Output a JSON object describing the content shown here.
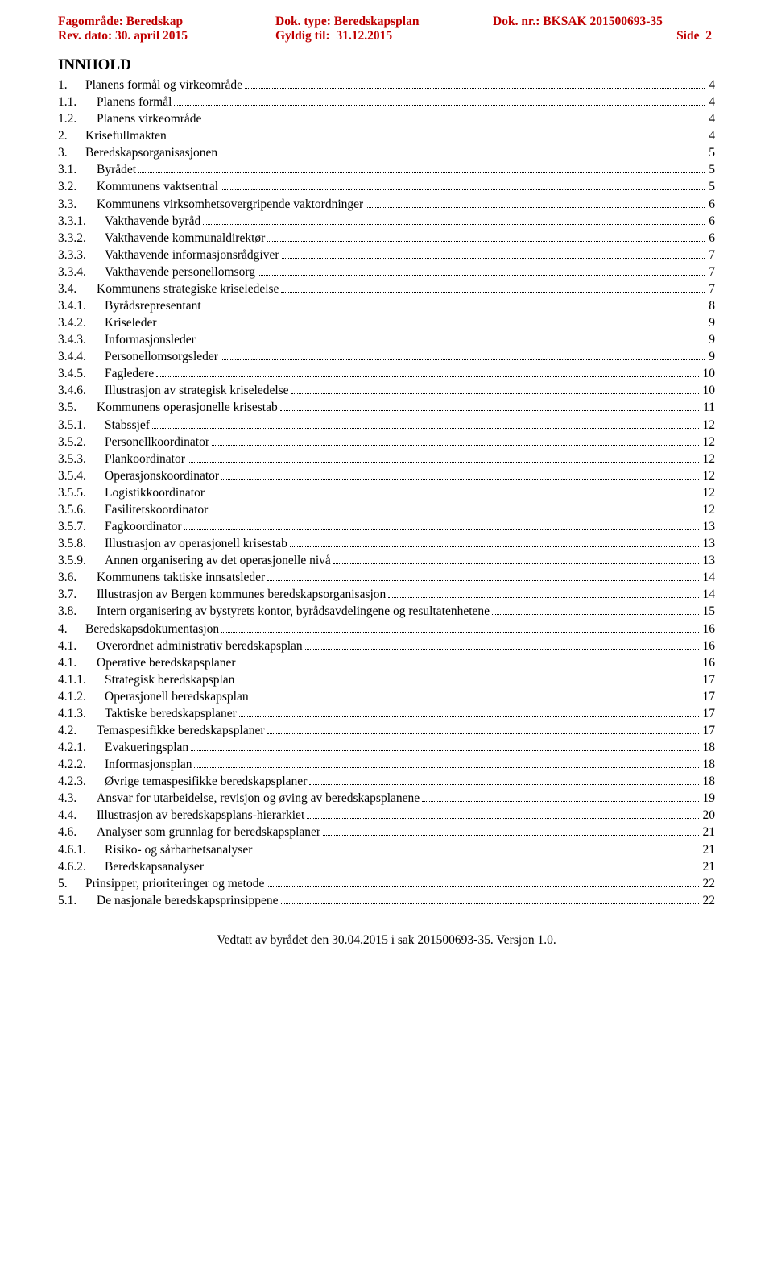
{
  "header": {
    "fagomrade_label": "Fagområde:",
    "fagomrade_value": "Beredskap",
    "rev_dato_label": "Rev. dato:",
    "rev_dato_value": "30. april 2015",
    "dok_type_label": "Dok. type:",
    "dok_type_value": "Beredskapsplan",
    "gyldig_til_label": "Gyldig til:",
    "gyldig_til_value": "31.12.2015",
    "dok_nr_label": "Dok. nr.:",
    "dok_nr_value": "BKSAK 201500693-35",
    "side_label": "Side",
    "side_value": "2"
  },
  "title": "INNHOLD",
  "toc": [
    {
      "level": 1,
      "num": "1.",
      "label": "Planens formål og virkeområde",
      "page": "4"
    },
    {
      "level": 2,
      "num": "1.1.",
      "label": "Planens formål",
      "page": "4"
    },
    {
      "level": 2,
      "num": "1.2.",
      "label": "Planens virkeområde",
      "page": "4"
    },
    {
      "level": 1,
      "num": "2.",
      "label": "Krisefullmakten",
      "page": "4"
    },
    {
      "level": 1,
      "num": "3.",
      "label": "Beredskapsorganisasjonen",
      "page": "5"
    },
    {
      "level": 2,
      "num": "3.1.",
      "label": "Byrådet",
      "page": "5"
    },
    {
      "level": 2,
      "num": "3.2.",
      "label": "Kommunens vaktsentral",
      "page": "5"
    },
    {
      "level": 2,
      "num": "3.3.",
      "label": "Kommunens virksomhetsovergripende vaktordninger",
      "page": "6"
    },
    {
      "level": 3,
      "num": "3.3.1.",
      "label": "Vakthavende byråd",
      "page": "6"
    },
    {
      "level": 3,
      "num": "3.3.2.",
      "label": "Vakthavende kommunaldirektør",
      "page": "6"
    },
    {
      "level": 3,
      "num": "3.3.3.",
      "label": "Vakthavende informasjonsrådgiver",
      "page": "7"
    },
    {
      "level": 3,
      "num": "3.3.4.",
      "label": "Vakthavende personellomsorg",
      "page": "7"
    },
    {
      "level": 2,
      "num": "3.4.",
      "label": "Kommunens strategiske kriseledelse",
      "page": "7"
    },
    {
      "level": 3,
      "num": "3.4.1.",
      "label": "Byrådsrepresentant",
      "page": "8"
    },
    {
      "level": 3,
      "num": "3.4.2.",
      "label": "Kriseleder",
      "page": "9"
    },
    {
      "level": 3,
      "num": "3.4.3.",
      "label": "Informasjonsleder",
      "page": "9"
    },
    {
      "level": 3,
      "num": "3.4.4.",
      "label": "Personellomsorgsleder",
      "page": "9"
    },
    {
      "level": 3,
      "num": "3.4.5.",
      "label": "Fagledere",
      "page": "10"
    },
    {
      "level": 3,
      "num": "3.4.6.",
      "label": "Illustrasjon av strategisk kriseledelse",
      "page": "10"
    },
    {
      "level": 2,
      "num": "3.5.",
      "label": "Kommunens operasjonelle krisestab",
      "page": "11"
    },
    {
      "level": 3,
      "num": "3.5.1.",
      "label": "Stabssjef",
      "page": "12"
    },
    {
      "level": 3,
      "num": "3.5.2.",
      "label": "Personellkoordinator",
      "page": "12"
    },
    {
      "level": 3,
      "num": "3.5.3.",
      "label": "Plankoordinator",
      "page": "12"
    },
    {
      "level": 3,
      "num": "3.5.4.",
      "label": "Operasjonskoordinator",
      "page": "12"
    },
    {
      "level": 3,
      "num": "3.5.5.",
      "label": "Logistikkoordinator",
      "page": "12"
    },
    {
      "level": 3,
      "num": "3.5.6.",
      "label": "Fasilitetskoordinator",
      "page": "12"
    },
    {
      "level": 3,
      "num": "3.5.7.",
      "label": "Fagkoordinator",
      "page": "13"
    },
    {
      "level": 3,
      "num": "3.5.8.",
      "label": "Illustrasjon av operasjonell krisestab",
      "page": "13"
    },
    {
      "level": 3,
      "num": "3.5.9.",
      "label": "Annen organisering av det operasjonelle nivå",
      "page": "13"
    },
    {
      "level": 2,
      "num": "3.6.",
      "label": "Kommunens taktiske innsatsleder",
      "page": "14"
    },
    {
      "level": 2,
      "num": "3.7.",
      "label": "Illustrasjon av Bergen kommunes beredskapsorganisasjon",
      "page": "14"
    },
    {
      "level": 2,
      "num": "3.8.",
      "label": "Intern organisering av bystyrets kontor, byrådsavdelingene og resultatenhetene",
      "page": "15"
    },
    {
      "level": 1,
      "num": "4.",
      "label": "Beredskapsdokumentasjon",
      "page": "16"
    },
    {
      "level": 2,
      "num": "4.1.",
      "label": "Overordnet administrativ beredskapsplan",
      "page": "16"
    },
    {
      "level": 2,
      "num": "4.1.",
      "label": "Operative beredskapsplaner",
      "page": "16"
    },
    {
      "level": 3,
      "num": "4.1.1.",
      "label": "Strategisk beredskapsplan",
      "page": "17"
    },
    {
      "level": 3,
      "num": "4.1.2.",
      "label": "Operasjonell beredskapsplan",
      "page": "17"
    },
    {
      "level": 3,
      "num": "4.1.3.",
      "label": "Taktiske beredskapsplaner",
      "page": "17"
    },
    {
      "level": 2,
      "num": "4.2.",
      "label": "Temaspesifikke beredskapsplaner",
      "page": "17"
    },
    {
      "level": 3,
      "num": "4.2.1.",
      "label": "Evakueringsplan",
      "page": "18"
    },
    {
      "level": 3,
      "num": "4.2.2.",
      "label": "Informasjonsplan",
      "page": "18"
    },
    {
      "level": 3,
      "num": "4.2.3.",
      "label": "Øvrige temaspesifikke beredskapsplaner",
      "page": "18"
    },
    {
      "level": 2,
      "num": "4.3.",
      "label": "Ansvar for utarbeidelse, revisjon og øving av beredskapsplanene",
      "page": "19"
    },
    {
      "level": 2,
      "num": "4.4.",
      "label": "Illustrasjon av beredskapsplans-hierarkiet",
      "page": "20"
    },
    {
      "level": 2,
      "num": "4.6.",
      "label": "Analyser som grunnlag for beredskapsplaner",
      "page": "21"
    },
    {
      "level": 3,
      "num": "4.6.1.",
      "label": "Risiko- og sårbarhetsanalyser",
      "page": "21"
    },
    {
      "level": 3,
      "num": "4.6.2.",
      "label": "Beredskapsanalyser",
      "page": "21"
    },
    {
      "level": 1,
      "num": "5.",
      "label": "Prinsipper, prioriteringer og metode",
      "page": "22"
    },
    {
      "level": 2,
      "num": "5.1.",
      "label": "De nasjonale beredskapsprinsippene",
      "page": "22"
    }
  ],
  "footer": "Vedtatt av byrådet den 30.04.2015 i sak 201500693-35. Versjon 1.0."
}
